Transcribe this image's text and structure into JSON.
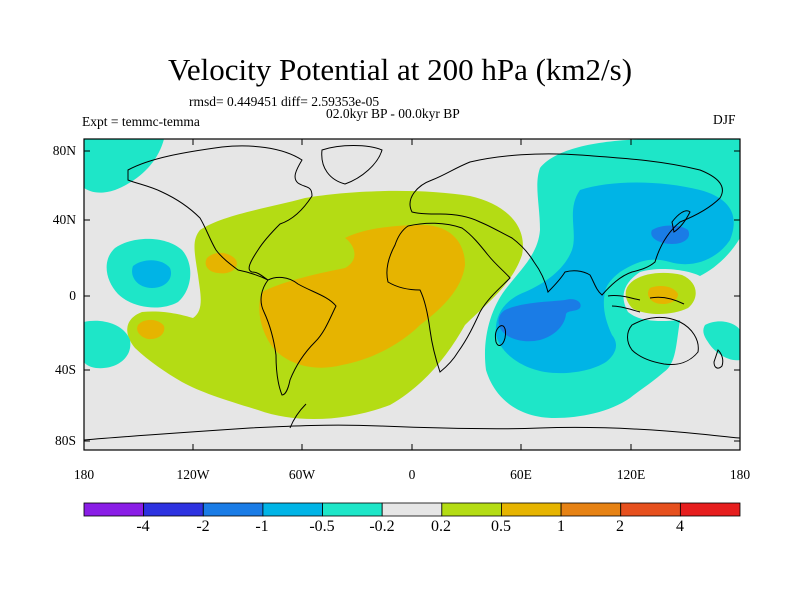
{
  "title": "Velocity Potential at 200 hPa (km2/s)",
  "stats_text": "rmsd= 0.449451  diff= 2.59353e-05",
  "period_text": "02.0kyr BP - 00.0kyr BP",
  "experiment_text": "Expt = temmc-temma",
  "season": "DJF",
  "lat_ticks": [
    "80N",
    "40N",
    "0",
    "40S",
    "80S"
  ],
  "lon_ticks": [
    "180",
    "120W",
    "60W",
    "0",
    "60E",
    "120E",
    "180"
  ],
  "colorbar": {
    "colors": [
      "#8a1ee6",
      "#2d32e0",
      "#1a7ce6",
      "#00b4e6",
      "#1ee6c8",
      "#e6e6e6",
      "#b4dc14",
      "#e6b400",
      "#e68214",
      "#e6501e",
      "#e61e1e"
    ],
    "labels": [
      "-4",
      "-2",
      "-1",
      "-0.5",
      "-0.2",
      "0.2",
      "0.5",
      "1",
      "2",
      "4"
    ]
  },
  "map": {
    "background": "#e6e6e6",
    "frame_color": "#000000",
    "coastline_color": "#000000"
  }
}
